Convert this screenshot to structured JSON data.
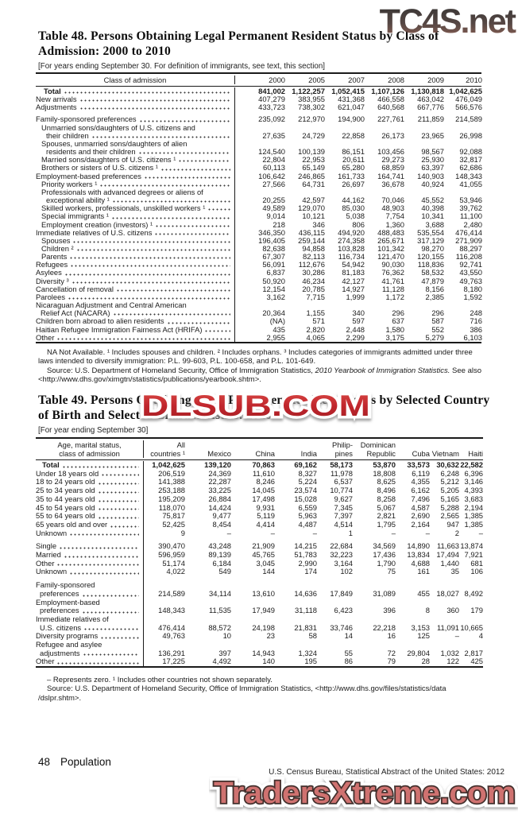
{
  "watermarks": {
    "top": "TC4S.net",
    "middle": "DLSUB.COM",
    "bottom": "TradersXtreme.com"
  },
  "table48": {
    "title": "Table 48. Persons Obtaining Legal Permanent Resident Status by Class of Admission: 2000 to 2010",
    "bracket_note": "[For years ending September 30. For definition of immigrants, see text, this section]",
    "stub_header": "Class of admission",
    "columns": [
      "2000",
      "2005",
      "2007",
      "2008",
      "2009",
      "2010"
    ],
    "rows": [
      {
        "label": "Total",
        "bold": true,
        "ind": 10,
        "values": [
          "841,002",
          "1,122,257",
          "1,052,415",
          "1,107,126",
          "1,130,818",
          "1,042,625"
        ]
      },
      {
        "label": "New arrivals",
        "values": [
          "407,279",
          "383,955",
          "431,368",
          "466,558",
          "463,042",
          "476,049"
        ]
      },
      {
        "label": "Adjustments",
        "values": [
          "433,723",
          "738,302",
          "621,047",
          "640,568",
          "667,776",
          "566,576"
        ]
      },
      {
        "gap": true
      },
      {
        "label": "Family-sponsored preferences",
        "values": [
          "235,092",
          "212,970",
          "194,900",
          "227,761",
          "211,859",
          "214,589"
        ]
      },
      {
        "pre": "Unmarried sons/daughters of U.S. citizens and",
        "preInd": 7,
        "label": "their children",
        "ind": 13,
        "values": [
          "27,635",
          "24,729",
          "22,858",
          "26,173",
          "23,965",
          "26,998"
        ]
      },
      {
        "pre": "Spouses, unmarried sons/daughters of alien",
        "preInd": 7,
        "label": "residents and their children",
        "ind": 13,
        "values": [
          "124,540",
          "100,139",
          "86,151",
          "103,456",
          "98,567",
          "92,088"
        ]
      },
      {
        "label": "Married sons/daughters of U.S. citizens ¹",
        "ind": 7,
        "values": [
          "22,804",
          "22,953",
          "20,611",
          "29,273",
          "25,930",
          "32,817"
        ]
      },
      {
        "label": "Brothers or sisters of U.S. citizens ¹",
        "ind": 7,
        "values": [
          "60,113",
          "65,149",
          "65,280",
          "68,859",
          "63,397",
          "62,686"
        ]
      },
      {
        "label": "Employment-based preferences",
        "values": [
          "106,642",
          "246,865",
          "161,733",
          "164,741",
          "140,903",
          "148,343"
        ]
      },
      {
        "label": "Priority workers ¹",
        "ind": 7,
        "values": [
          "27,566",
          "64,731",
          "26,697",
          "36,678",
          "40,924",
          "41,055"
        ]
      },
      {
        "pre": "Professionals with advanced degrees or aliens of",
        "preInd": 7,
        "label": "exceptional ability ¹",
        "ind": 13,
        "values": [
          "20,255",
          "42,597",
          "44,162",
          "70,046",
          "45,552",
          "53,946"
        ]
      },
      {
        "label": "Skilled workers, professionals, unskilled workers ¹",
        "ind": 7,
        "values": [
          "49,589",
          "129,070",
          "85,030",
          "48,903",
          "40,398",
          "39,762"
        ]
      },
      {
        "label": "Special immigrants ¹",
        "ind": 7,
        "values": [
          "9,014",
          "10,121",
          "5,038",
          "7,754",
          "10,341",
          "11,100"
        ]
      },
      {
        "label": "Employment creation (investors) ¹",
        "ind": 7,
        "values": [
          "218",
          "346",
          "806",
          "1,360",
          "3,688",
          "2,480"
        ]
      },
      {
        "label": "Immediate relatives of U.S. citizens",
        "values": [
          "346,350",
          "436,115",
          "494,920",
          "488,483",
          "535,554",
          "476,414"
        ]
      },
      {
        "label": "Spouses",
        "ind": 7,
        "values": [
          "196,405",
          "259,144",
          "274,358",
          "265,671",
          "317,129",
          "271,909"
        ]
      },
      {
        "label": "Children ²",
        "ind": 7,
        "values": [
          "82,638",
          "94,858",
          "103,828",
          "101,342",
          "98,270",
          "88,297"
        ]
      },
      {
        "label": "Parents",
        "ind": 7,
        "values": [
          "67,307",
          "82,113",
          "116,734",
          "121,470",
          "120,155",
          "116,208"
        ]
      },
      {
        "label": "Refugees",
        "values": [
          "56,091",
          "112,676",
          "54,942",
          "90,030",
          "118,836",
          "92,741"
        ]
      },
      {
        "label": "Asylees",
        "values": [
          "6,837",
          "30,286",
          "81,183",
          "76,362",
          "58,532",
          "43,550"
        ]
      },
      {
        "label": "Diversity ³",
        "values": [
          "50,920",
          "46,234",
          "42,127",
          "41,761",
          "47,879",
          "49,763"
        ]
      },
      {
        "label": "Cancellation of removal",
        "values": [
          "12,154",
          "20,785",
          "14,927",
          "11,128",
          "8,156",
          "8,180"
        ]
      },
      {
        "label": "Parolees",
        "values": [
          "3,162",
          "7,715",
          "1,999",
          "1,172",
          "2,385",
          "1,592"
        ]
      },
      {
        "pre": "Nicaraguan Adjustment and Central American",
        "preInd": 0,
        "label": "Relief Act (NACARA)",
        "ind": 6,
        "values": [
          "20,364",
          "1,155",
          "340",
          "296",
          "296",
          "248"
        ]
      },
      {
        "label": "Children born abroad to alien residents",
        "values": [
          "(NA)",
          "571",
          "597",
          "637",
          "587",
          "716"
        ]
      },
      {
        "label": "Haitian Refugee Immigration Fairness Act (HRIFA)",
        "values": [
          "435",
          "2,820",
          "2,448",
          "1,580",
          "552",
          "386"
        ]
      },
      {
        "label": "Other",
        "values": [
          "2,955",
          "4,065",
          "2,299",
          "3,175",
          "5,279",
          "6,103"
        ]
      }
    ],
    "footnote": "NA Not Available. ¹ Includes spouses and children. ² Includes orphans. ³ Includes categories of immigrants admitted under three laws intended to diversify immigration: P.L. 99-603, P.L. 100-658, and P.L. 101-649.",
    "source_pre": "Source: U.S. Department of Homeland Security, Office of Immigration Statistics, ",
    "source_italic": "2010 Yearbook of Immigration Statistics.",
    "source_post": " See also <http://www.dhs.gov/ximgtn/statistics/publications/yearbook.shtm>."
  },
  "table49": {
    "title": "Table 49. Persons Obtaining Legal Permanent Resident Status by Selected Country of Birth and Selected Characteristics: 2010",
    "bracket_note": "[For year ending September 30]",
    "stub_header": [
      "Age, marital status,",
      "class of admission"
    ],
    "columns": [
      [
        "All",
        "countries ¹"
      ],
      [
        "",
        "Mexico"
      ],
      [
        "",
        "China"
      ],
      [
        "",
        "India"
      ],
      [
        "Philip-",
        "pines"
      ],
      [
        "Dominican",
        "Republic"
      ],
      [
        "",
        "Cuba"
      ],
      [
        "",
        "Vietnam"
      ],
      [
        "",
        "Haiti"
      ]
    ],
    "rows": [
      {
        "label": "Total",
        "bold": true,
        "ind": 8,
        "values": [
          "1,042,625",
          "139,120",
          "70,863",
          "69,162",
          "58,173",
          "53,870",
          "33,573",
          "30,632",
          "22,582"
        ]
      },
      {
        "label": "Under 18 years old",
        "values": [
          "206,519",
          "24,369",
          "11,610",
          "8,327",
          "11,978",
          "18,808",
          "6,119",
          "6,248",
          "6,396"
        ]
      },
      {
        "label": "18 to 24 years old",
        "values": [
          "141,388",
          "22,287",
          "8,246",
          "5,224",
          "6,537",
          "8,625",
          "4,355",
          "5,212",
          "3,146"
        ]
      },
      {
        "label": "25 to 34 years old",
        "values": [
          "253,188",
          "33,225",
          "14,045",
          "23,574",
          "10,774",
          "8,496",
          "6,162",
          "5,205",
          "4,393"
        ]
      },
      {
        "label": "35 to 44 years old",
        "values": [
          "195,209",
          "26,884",
          "17,498",
          "15,028",
          "9,627",
          "8,258",
          "7,496",
          "5,165",
          "3,683"
        ]
      },
      {
        "label": "45 to 54 years old",
        "values": [
          "118,070",
          "14,424",
          "9,931",
          "6,559",
          "7,345",
          "5,067",
          "4,587",
          "5,288",
          "2,194"
        ]
      },
      {
        "label": "55 to 64 years old",
        "values": [
          "75,817",
          "9,477",
          "5,119",
          "5,963",
          "7,397",
          "2,821",
          "2,690",
          "2,565",
          "1,385"
        ]
      },
      {
        "label": "65 years old and over",
        "values": [
          "52,425",
          "8,454",
          "4,414",
          "4,487",
          "4,514",
          "1,795",
          "2,164",
          "947",
          "1,385"
        ]
      },
      {
        "label": "Unknown",
        "values": [
          "9",
          "–",
          "–",
          "–",
          "1",
          "–",
          "–",
          "2",
          "–"
        ]
      },
      {
        "gap": true
      },
      {
        "label": "Single",
        "values": [
          "390,470",
          "43,248",
          "21,909",
          "14,215",
          "22,684",
          "34,569",
          "14,890",
          "11,663",
          "13,874"
        ]
      },
      {
        "label": "Married",
        "values": [
          "596,959",
          "89,139",
          "45,765",
          "51,783",
          "32,223",
          "17,436",
          "13,834",
          "17,494",
          "7,921"
        ]
      },
      {
        "label": "Other",
        "values": [
          "51,174",
          "6,184",
          "3,045",
          "2,990",
          "3,164",
          "1,790",
          "4,688",
          "1,440",
          "681"
        ]
      },
      {
        "label": "Unknown",
        "values": [
          "4,022",
          "549",
          "144",
          "174",
          "102",
          "75",
          "161",
          "35",
          "106"
        ]
      },
      {
        "gap": true
      },
      {
        "pre": "Family-sponsored",
        "preInd": 0,
        "label": "preferences",
        "ind": 5,
        "values": [
          "214,589",
          "34,114",
          "13,610",
          "14,636",
          "17,849",
          "31,089",
          "455",
          "18,027",
          "8,492"
        ]
      },
      {
        "pre": "Employment-based",
        "preInd": 0,
        "label": "preferences",
        "ind": 5,
        "values": [
          "148,343",
          "11,535",
          "17,949",
          "31,118",
          "6,423",
          "396",
          "8",
          "360",
          "179"
        ]
      },
      {
        "pre": "Immediate relatives of",
        "preInd": 0,
        "label": "U.S. citizens",
        "ind": 5,
        "values": [
          "476,414",
          "88,572",
          "24,198",
          "21,831",
          "33,746",
          "22,218",
          "3,153",
          "11,091",
          "10,665"
        ]
      },
      {
        "label": "Diversity programs",
        "values": [
          "49,763",
          "10",
          "23",
          "58",
          "14",
          "16",
          "125",
          "–",
          "4"
        ]
      },
      {
        "pre": "Refugee and asylee",
        "preInd": 0,
        "label": "adjustments",
        "ind": 5,
        "values": [
          "136,291",
          "397",
          "14,943",
          "1,324",
          "55",
          "72",
          "29,804",
          "1,032",
          "2,817"
        ]
      },
      {
        "label": "Other",
        "values": [
          "17,225",
          "4,492",
          "140",
          "195",
          "86",
          "79",
          "28",
          "122",
          "425"
        ]
      }
    ],
    "footnote": "– Represents zero. ¹ Includes other countries not shown separately.",
    "source": "Source: U.S. Department of Homeland Security, Office of Immigration Statistics, <http://www.dhs.gov/files/statistics/data /dslpr.shtm>."
  },
  "footer": {
    "page_number": "48",
    "section": "Population",
    "credit": "U.S. Census Bureau, Statistical Abstract of the United States: 2012"
  }
}
